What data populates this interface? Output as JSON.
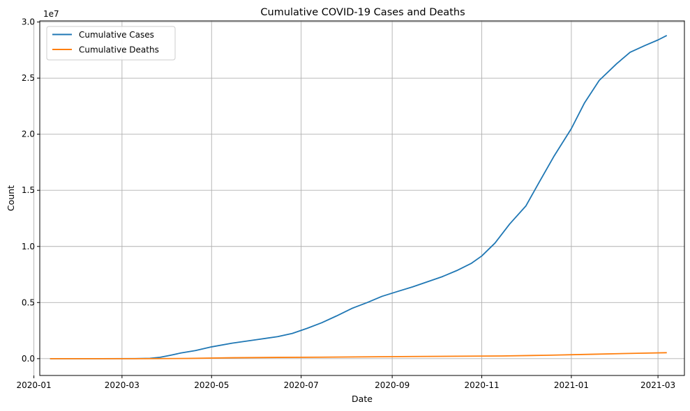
{
  "chart_data": {
    "type": "line",
    "title": "Cumulative COVID-19 Cases and Deaths",
    "xlabel": "Date",
    "ylabel": "Count",
    "y_multiplier_label": "1e7",
    "y_scale": 10000000,
    "xlim": [
      "2020-01-05",
      "2021-03-19"
    ],
    "ylim": [
      -1500000,
      30100000
    ],
    "x_ticks": [
      "2020-01-01",
      "2020-03-01",
      "2020-05-01",
      "2020-07-01",
      "2020-09-01",
      "2020-11-01",
      "2021-01-01",
      "2021-03-01"
    ],
    "x_tick_labels": [
      "2020-01",
      "2020-03",
      "2020-05",
      "2020-07",
      "2020-09",
      "2020-11",
      "2021-01",
      "2021-03"
    ],
    "y_ticks": [
      0,
      5000000,
      10000000,
      15000000,
      20000000,
      25000000,
      30000000
    ],
    "y_tick_labels": [
      "0.0",
      "0.5",
      "1.0",
      "1.5",
      "2.0",
      "2.5",
      "3.0"
    ],
    "grid": true,
    "legend_position": "top-left",
    "series": [
      {
        "name": "Cumulative Cases",
        "color": "#1f77b4",
        "points": [
          [
            "2020-01-12",
            0
          ],
          [
            "2020-02-15",
            0
          ],
          [
            "2020-03-10",
            5000
          ],
          [
            "2020-03-20",
            30000
          ],
          [
            "2020-03-27",
            120000
          ],
          [
            "2020-04-03",
            300000
          ],
          [
            "2020-04-10",
            500000
          ],
          [
            "2020-04-20",
            720000
          ],
          [
            "2020-05-01",
            1050000
          ],
          [
            "2020-05-15",
            1380000
          ],
          [
            "2020-06-01",
            1700000
          ],
          [
            "2020-06-15",
            1960000
          ],
          [
            "2020-06-25",
            2250000
          ],
          [
            "2020-07-05",
            2700000
          ],
          [
            "2020-07-15",
            3200000
          ],
          [
            "2020-07-25",
            3800000
          ],
          [
            "2020-08-05",
            4500000
          ],
          [
            "2020-08-15",
            5000000
          ],
          [
            "2020-08-25",
            5550000
          ],
          [
            "2020-09-05",
            6000000
          ],
          [
            "2020-09-15",
            6400000
          ],
          [
            "2020-09-25",
            6850000
          ],
          [
            "2020-10-05",
            7300000
          ],
          [
            "2020-10-15",
            7850000
          ],
          [
            "2020-10-25",
            8500000
          ],
          [
            "2020-11-01",
            9150000
          ],
          [
            "2020-11-10",
            10300000
          ],
          [
            "2020-11-20",
            12000000
          ],
          [
            "2020-12-01",
            13600000
          ],
          [
            "2020-12-10",
            15700000
          ],
          [
            "2020-12-20",
            18000000
          ],
          [
            "2021-01-01",
            20500000
          ],
          [
            "2021-01-10",
            22800000
          ],
          [
            "2021-01-20",
            24800000
          ],
          [
            "2021-02-01",
            26300000
          ],
          [
            "2021-02-10",
            27300000
          ],
          [
            "2021-02-20",
            27900000
          ],
          [
            "2021-03-01",
            28400000
          ],
          [
            "2021-03-07",
            28800000
          ]
        ]
      },
      {
        "name": "Cumulative Deaths",
        "color": "#ff7f0e",
        "points": [
          [
            "2020-01-12",
            0
          ],
          [
            "2020-03-15",
            0
          ],
          [
            "2020-04-15",
            20000
          ],
          [
            "2020-05-15",
            80000
          ],
          [
            "2020-06-15",
            110000
          ],
          [
            "2020-07-15",
            130000
          ],
          [
            "2020-08-15",
            160000
          ],
          [
            "2020-09-15",
            190000
          ],
          [
            "2020-10-15",
            215000
          ],
          [
            "2020-11-15",
            240000
          ],
          [
            "2020-12-15",
            300000
          ],
          [
            "2021-01-15",
            390000
          ],
          [
            "2021-02-15",
            480000
          ],
          [
            "2021-03-07",
            530000
          ]
        ]
      }
    ]
  }
}
